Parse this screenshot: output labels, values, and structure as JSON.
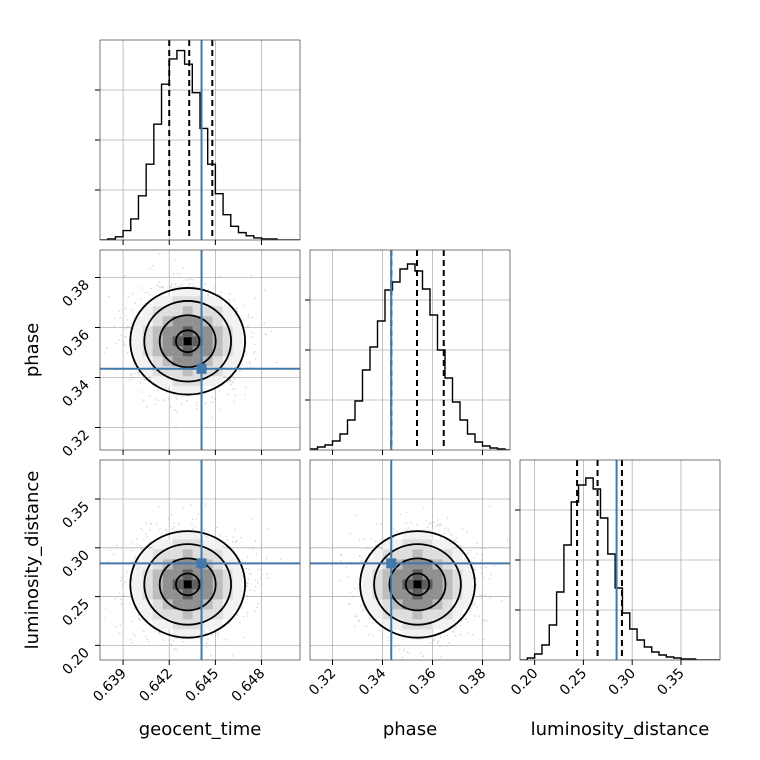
{
  "chart_data": {
    "type": "corner",
    "parameters": [
      {
        "name": "geocent_time",
        "label": "geocent_time",
        "range": [
          0.6375,
          0.6505
        ],
        "ticks": [
          0.639,
          0.642,
          0.645,
          0.648
        ],
        "tick_labels": [
          "0.639",
          "0.642",
          "0.645",
          "0.648"
        ],
        "truth": 0.6441,
        "quantiles": [
          0.642,
          0.6433,
          0.6448
        ],
        "histogram": {
          "edges": [
            0.6375,
            0.638,
            0.6385,
            0.639,
            0.6395,
            0.64,
            0.6405,
            0.641,
            0.6415,
            0.642,
            0.6425,
            0.643,
            0.6435,
            0.644,
            0.6445,
            0.645,
            0.6455,
            0.646,
            0.6465,
            0.647,
            0.6475,
            0.648,
            0.6485,
            0.649,
            0.6495,
            0.65,
            0.6505
          ],
          "counts": [
            0,
            1,
            3,
            9,
            20,
            42,
            72,
            110,
            148,
            172,
            180,
            167,
            140,
            106,
            72,
            44,
            24,
            13,
            7,
            4,
            2,
            1,
            1,
            0,
            0,
            0
          ],
          "ymax": 190
        }
      },
      {
        "name": "phase",
        "label": "phase",
        "range": [
          0.311,
          0.391
        ],
        "ticks": [
          0.32,
          0.34,
          0.36,
          0.38
        ],
        "tick_labels": [
          "0.32",
          "0.34",
          "0.36",
          "0.38"
        ],
        "truth": 0.3435,
        "quantiles": [
          0.3435,
          0.3538,
          0.3645
        ],
        "histogram": {
          "edges": [
            0.311,
            0.314,
            0.317,
            0.32,
            0.323,
            0.326,
            0.329,
            0.332,
            0.335,
            0.338,
            0.341,
            0.344,
            0.347,
            0.35,
            0.353,
            0.356,
            0.359,
            0.362,
            0.365,
            0.368,
            0.371,
            0.374,
            0.377,
            0.38,
            0.383,
            0.386,
            0.389,
            0.392
          ],
          "counts": [
            1,
            3,
            5,
            9,
            16,
            30,
            49,
            80,
            103,
            129,
            160,
            168,
            181,
            186,
            179,
            161,
            135,
            100,
            72,
            48,
            30,
            16,
            8,
            4,
            2,
            1,
            0
          ],
          "ymax": 200
        }
      },
      {
        "name": "luminosity_distance",
        "label": "luminosity_distance",
        "range": [
          0.185,
          0.39
        ],
        "ticks": [
          0.2,
          0.25,
          0.3,
          0.35
        ],
        "tick_labels": [
          "0.20",
          "0.25",
          "0.30",
          "0.35"
        ],
        "truth": 0.284,
        "quantiles": [
          0.2435,
          0.2645,
          0.2895
        ],
        "histogram": {
          "edges": [
            0.185,
            0.1925,
            0.2,
            0.2075,
            0.215,
            0.2225,
            0.23,
            0.2375,
            0.245,
            0.2525,
            0.26,
            0.2675,
            0.275,
            0.2825,
            0.29,
            0.2975,
            0.305,
            0.3125,
            0.32,
            0.3275,
            0.335,
            0.3425,
            0.35,
            0.3575,
            0.365,
            0.3725,
            0.38,
            0.39
          ],
          "counts": [
            0,
            2,
            6,
            15,
            35,
            68,
            115,
            158,
            175,
            182,
            171,
            142,
            106,
            72,
            47,
            31,
            20,
            13,
            8,
            5,
            3,
            2,
            1,
            1,
            0,
            0,
            0
          ],
          "ymax": 200
        }
      }
    ],
    "joint": [
      {
        "x_param": "geocent_time",
        "y_param": "phase",
        "center": [
          0.6432,
          0.3545
        ],
        "truth_point": [
          0.6441,
          0.3435
        ]
      },
      {
        "x_param": "geocent_time",
        "y_param": "luminosity_distance",
        "center": [
          0.6432,
          0.2625
        ],
        "truth_point": [
          0.6441,
          0.284
        ]
      },
      {
        "x_param": "phase",
        "y_param": "luminosity_distance",
        "center": [
          0.354,
          0.2625
        ],
        "truth_point": [
          0.3435,
          0.284
        ]
      }
    ],
    "colors": {
      "truth": "#4477aa",
      "hist": "#000000",
      "grid": "#b0b0b0",
      "scatter": "#999999"
    },
    "grid": true
  }
}
